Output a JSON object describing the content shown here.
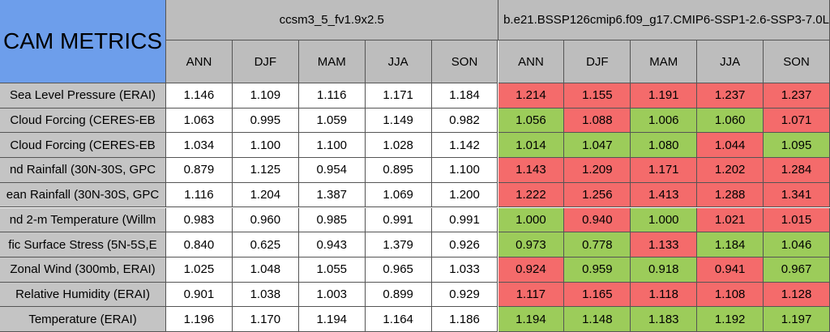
{
  "title": "CAM METRICS",
  "cases": [
    {
      "name": "ccsm3_5_fv1.9x2.5",
      "seasons": [
        "ANN",
        "DJF",
        "MAM",
        "JJA",
        "SON"
      ]
    },
    {
      "name": "b.e21.BSSP126cmip6.f09_g17.CMIP6-SSP1-2.6-SSP3-7.0L",
      "seasons": [
        "ANN",
        "DJF",
        "MAM",
        "JJA",
        "SON"
      ]
    }
  ],
  "rows": [
    {
      "label": "Sea Level Pressure (ERAI)",
      "values": [
        "1.146",
        "1.109",
        "1.116",
        "1.171",
        "1.184",
        "1.214",
        "1.155",
        "1.191",
        "1.237",
        "1.237"
      ],
      "colors": [
        "#ffffff",
        "#ffffff",
        "#ffffff",
        "#ffffff",
        "#ffffff",
        "#f46b6b",
        "#f46b6b",
        "#f46b6b",
        "#f46b6b",
        "#f46b6b"
      ]
    },
    {
      "label": "Cloud Forcing (CERES-EB",
      "values": [
        "1.063",
        "0.995",
        "1.059",
        "1.149",
        "0.982",
        "1.056",
        "1.088",
        "1.006",
        "1.060",
        "1.071"
      ],
      "colors": [
        "#ffffff",
        "#ffffff",
        "#ffffff",
        "#ffffff",
        "#ffffff",
        "#9ccc5a",
        "#f46b6b",
        "#9ccc5a",
        "#9ccc5a",
        "#f46b6b"
      ]
    },
    {
      "label": "Cloud Forcing (CERES-EB",
      "values": [
        "1.034",
        "1.100",
        "1.100",
        "1.028",
        "1.142",
        "1.014",
        "1.047",
        "1.080",
        "1.044",
        "1.095"
      ],
      "colors": [
        "#ffffff",
        "#ffffff",
        "#ffffff",
        "#ffffff",
        "#ffffff",
        "#9ccc5a",
        "#9ccc5a",
        "#9ccc5a",
        "#f46b6b",
        "#9ccc5a"
      ]
    },
    {
      "label": "nd Rainfall (30N-30S, GPC",
      "values": [
        "0.879",
        "1.125",
        "0.954",
        "0.895",
        "1.100",
        "1.143",
        "1.209",
        "1.171",
        "1.202",
        "1.284"
      ],
      "colors": [
        "#ffffff",
        "#ffffff",
        "#ffffff",
        "#ffffff",
        "#ffffff",
        "#f46b6b",
        "#f46b6b",
        "#f46b6b",
        "#f46b6b",
        "#f46b6b"
      ]
    },
    {
      "label": "ean Rainfall (30N-30S, GPC",
      "values": [
        "1.116",
        "1.204",
        "1.387",
        "1.069",
        "1.200",
        "1.222",
        "1.256",
        "1.413",
        "1.288",
        "1.341"
      ],
      "colors": [
        "#ffffff",
        "#ffffff",
        "#ffffff",
        "#ffffff",
        "#ffffff",
        "#f46b6b",
        "#f46b6b",
        "#f46b6b",
        "#f46b6b",
        "#f46b6b"
      ]
    },
    {
      "label": "nd 2-m Temperature (Willm",
      "values": [
        "0.983",
        "0.960",
        "0.985",
        "0.991",
        "0.991",
        "1.000",
        "0.940",
        "1.000",
        "1.021",
        "1.015"
      ],
      "colors": [
        "#ffffff",
        "#ffffff",
        "#ffffff",
        "#ffffff",
        "#ffffff",
        "#9ccc5a",
        "#f46b6b",
        "#9ccc5a",
        "#f46b6b",
        "#f46b6b"
      ]
    },
    {
      "label": "fic Surface Stress (5N-5S,E",
      "values": [
        "0.840",
        "0.625",
        "0.943",
        "1.379",
        "0.926",
        "0.973",
        "0.778",
        "1.133",
        "1.184",
        "1.046"
      ],
      "colors": [
        "#ffffff",
        "#ffffff",
        "#ffffff",
        "#ffffff",
        "#ffffff",
        "#9ccc5a",
        "#9ccc5a",
        "#f46b6b",
        "#9ccc5a",
        "#9ccc5a"
      ]
    },
    {
      "label": "Zonal Wind (300mb, ERAI)",
      "values": [
        "1.025",
        "1.048",
        "1.055",
        "0.965",
        "1.033",
        "0.924",
        "0.959",
        "0.918",
        "0.941",
        "0.967"
      ],
      "colors": [
        "#ffffff",
        "#ffffff",
        "#ffffff",
        "#ffffff",
        "#ffffff",
        "#f46b6b",
        "#9ccc5a",
        "#9ccc5a",
        "#f46b6b",
        "#9ccc5a"
      ]
    },
    {
      "label": "Relative Humidity (ERAI)",
      "values": [
        "0.901",
        "1.038",
        "1.003",
        "0.899",
        "0.929",
        "1.117",
        "1.165",
        "1.118",
        "1.108",
        "1.128"
      ],
      "colors": [
        "#ffffff",
        "#ffffff",
        "#ffffff",
        "#ffffff",
        "#ffffff",
        "#f46b6b",
        "#f46b6b",
        "#f46b6b",
        "#f46b6b",
        "#f46b6b"
      ]
    },
    {
      "label": "Temperature (ERAI)",
      "values": [
        "1.196",
        "1.170",
        "1.194",
        "1.164",
        "1.186",
        "1.194",
        "1.148",
        "1.183",
        "1.192",
        "1.197"
      ],
      "colors": [
        "#ffffff",
        "#ffffff",
        "#ffffff",
        "#ffffff",
        "#ffffff",
        "#9ccc5a",
        "#9ccc5a",
        "#9ccc5a",
        "#9ccc5a",
        "#9ccc5a"
      ]
    }
  ]
}
